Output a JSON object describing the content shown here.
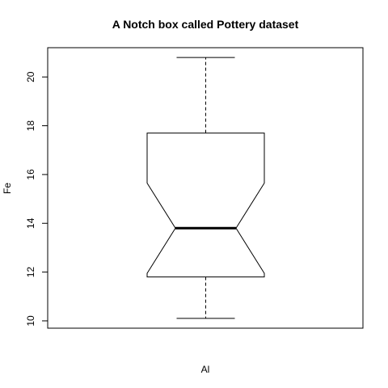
{
  "chart_data": {
    "type": "boxplot",
    "title": "A Notch box called Pottery dataset",
    "xlabel": "Al",
    "ylabel": "Fe",
    "ylim": [
      9.7,
      21.2
    ],
    "y_ticks": [
      10,
      12,
      14,
      16,
      18,
      20
    ],
    "notch": true,
    "box": {
      "whisker_low": 10.1,
      "q1": 11.8,
      "median": 13.8,
      "q3": 17.7,
      "whisker_high": 20.8,
      "notch_low": 11.95,
      "notch_high": 15.65
    },
    "grid": false,
    "legend": "none"
  }
}
